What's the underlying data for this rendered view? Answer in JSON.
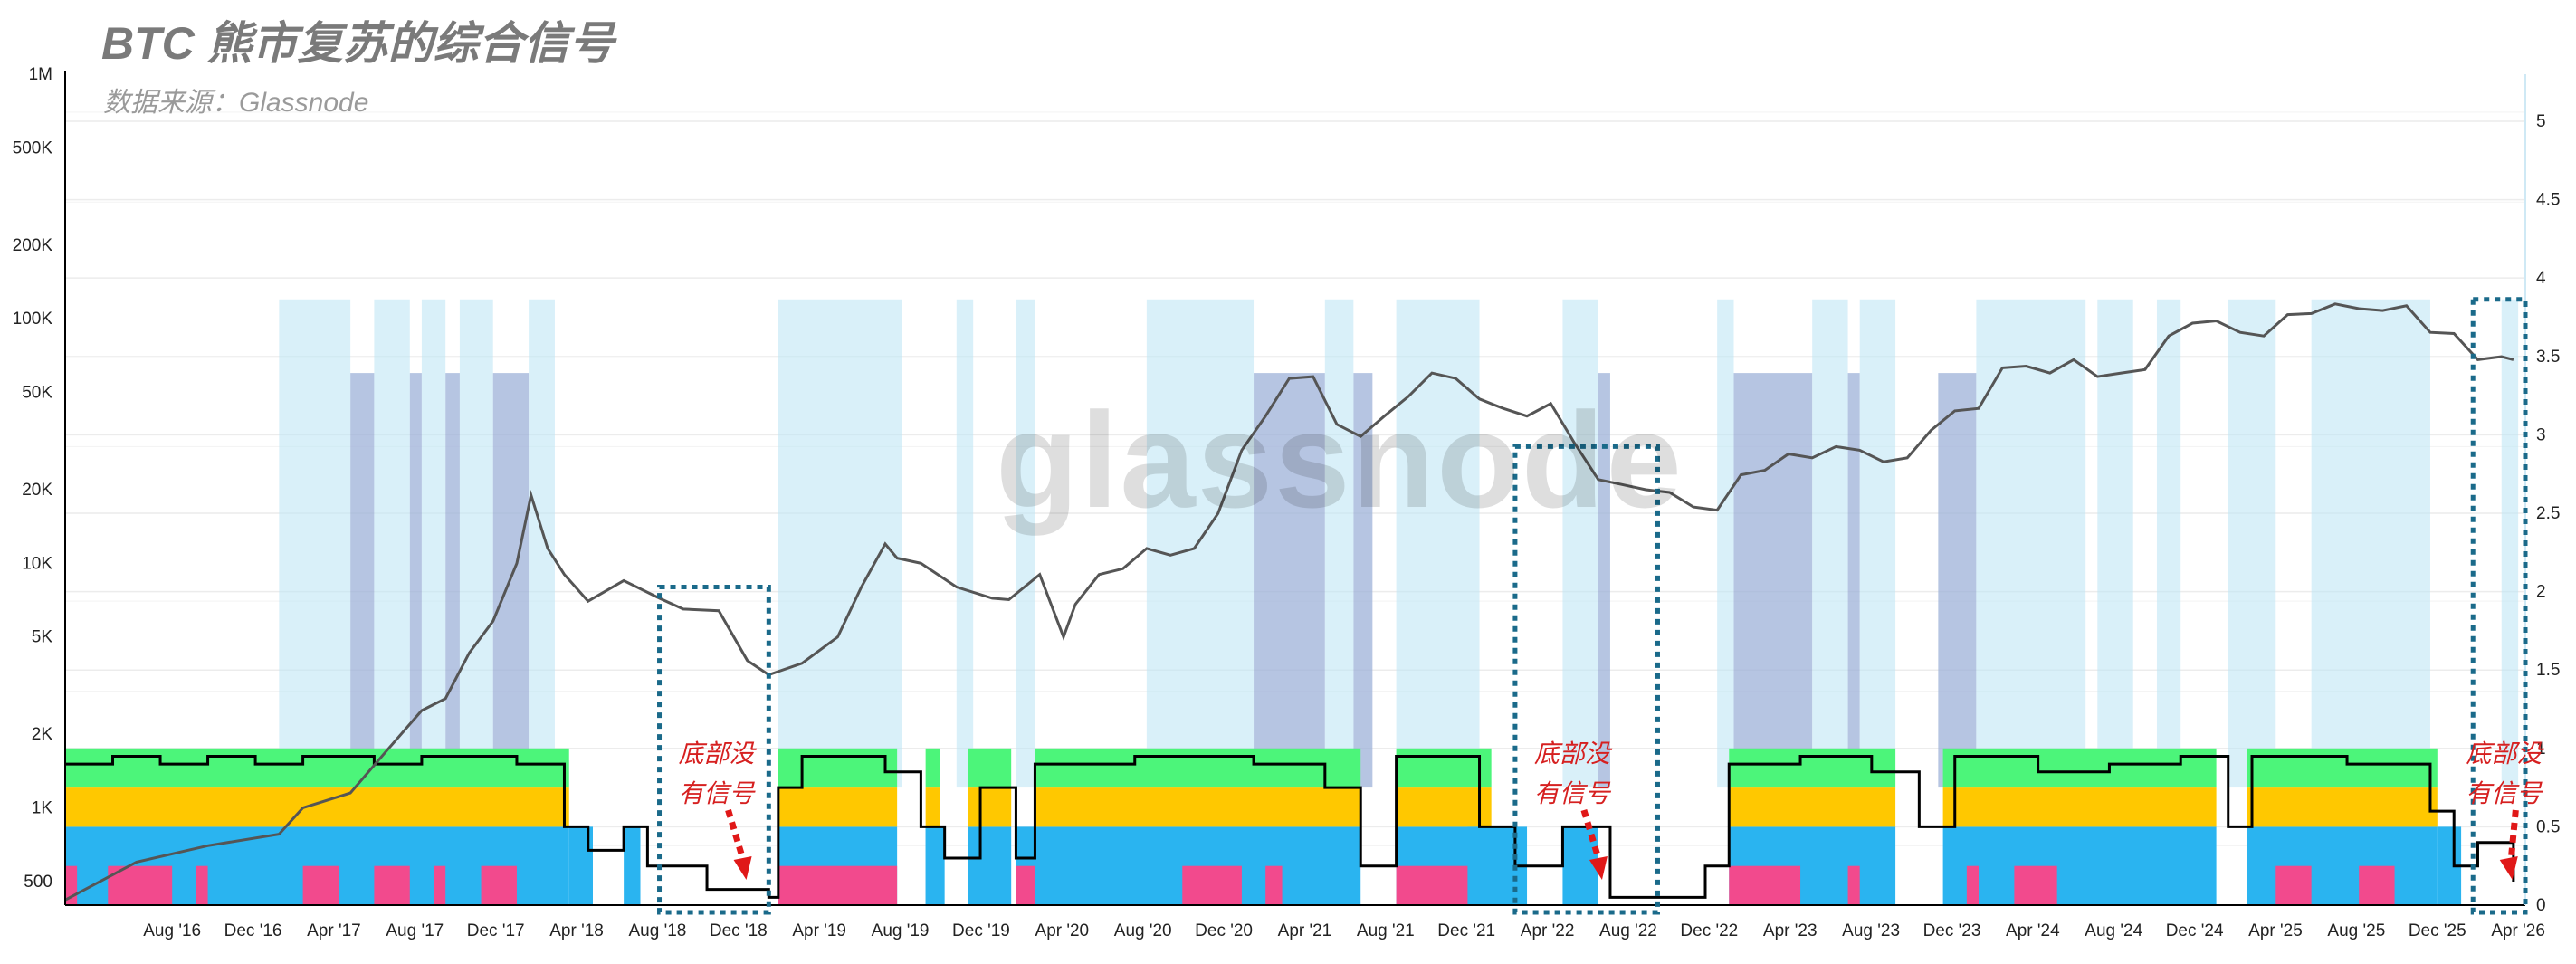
{
  "chart_data": {
    "type": "line",
    "title": "BTC 熊市复苏的综合信号",
    "subtitle": "数据来源：Glassnode",
    "watermark": "glassnode",
    "x_tick_labels": [
      "Aug '16",
      "Dec '16",
      "Apr '17",
      "Aug '17",
      "Dec '17",
      "Apr '18",
      "Aug '18",
      "Dec '18",
      "Apr '19",
      "Aug '19",
      "Dec '19",
      "Apr '20",
      "Aug '20",
      "Dec '20",
      "Apr '21",
      "Aug '21",
      "Dec '21",
      "Apr '22",
      "Aug '22",
      "Dec '22",
      "Apr '23",
      "Aug '23",
      "Dec '23",
      "Apr '24",
      "Aug '24",
      "Dec '24",
      "Apr '25",
      "Aug '25",
      "Dec '25",
      "Apr '26"
    ],
    "x_range": [
      2016.0,
      2026.35
    ],
    "y_left": {
      "scale": "log",
      "ticks": [
        500,
        1000,
        2000,
        5000,
        10000,
        20000,
        50000,
        100000,
        200000,
        500000,
        1000000
      ],
      "tick_labels": [
        "500",
        "1K",
        "2K",
        "5K",
        "10K",
        "20K",
        "50K",
        "100K",
        "200K",
        "500K",
        "1M"
      ],
      "range": [
        400,
        1000000
      ]
    },
    "y_right": {
      "scale": "linear",
      "ticks": [
        0,
        0.5,
        1,
        1.5,
        2,
        2.5,
        3,
        3.5,
        4,
        4.5,
        5
      ],
      "tick_labels": [
        "0",
        "0.5",
        "1",
        "1.5",
        "2",
        "2.5",
        "3",
        "3.5",
        "4",
        "4.5",
        "5"
      ],
      "range": [
        0,
        5.3
      ]
    },
    "grid": true,
    "series": [
      {
        "axis": "left",
        "color": "#555555",
        "x": [
          2016.0,
          2016.3,
          2016.6,
          2016.9,
          2017.0,
          2017.2,
          2017.35,
          2017.5,
          2017.6,
          2017.7,
          2017.8,
          2017.9,
          2017.96,
          2018.03,
          2018.1,
          2018.2,
          2018.35,
          2018.5,
          2018.6,
          2018.75,
          2018.87,
          2018.96,
          2019.1,
          2019.25,
          2019.35,
          2019.45,
          2019.5,
          2019.6,
          2019.75,
          2019.9,
          2019.97,
          2020.1,
          2020.2,
          2020.25,
          2020.35,
          2020.45,
          2020.55,
          2020.65,
          2020.75,
          2020.85,
          2020.95,
          2021.05,
          2021.15,
          2021.25,
          2021.35,
          2021.45,
          2021.55,
          2021.65,
          2021.75,
          2021.85,
          2021.95,
          2022.05,
          2022.15,
          2022.25,
          2022.35,
          2022.45,
          2022.55,
          2022.65,
          2022.75,
          2022.85,
          2022.95,
          2023.05,
          2023.15,
          2023.25,
          2023.35,
          2023.45,
          2023.55,
          2023.65,
          2023.75,
          2023.85,
          2023.95,
          2024.05,
          2024.15,
          2024.25,
          2024.35,
          2024.45,
          2024.55,
          2024.65,
          2024.75,
          2024.85,
          2024.95,
          2025.05,
          2025.15,
          2025.25,
          2025.35,
          2025.45,
          2025.55,
          2025.65,
          2025.75,
          2025.85,
          2025.95,
          2026.05,
          2026.15,
          2026.25,
          2026.3
        ],
        "y": [
          420,
          600,
          700,
          780,
          1000,
          1150,
          1700,
          2500,
          2800,
          4300,
          5800,
          10000,
          19000,
          11500,
          9000,
          7000,
          8500,
          7200,
          6500,
          6400,
          4000,
          3500,
          3900,
          5000,
          8000,
          12000,
          10500,
          10000,
          8000,
          7200,
          7100,
          9000,
          5000,
          6800,
          9000,
          9500,
          11500,
          10800,
          11500,
          16000,
          29000,
          40000,
          57000,
          58000,
          37000,
          33000,
          40000,
          48000,
          60000,
          57000,
          47000,
          43000,
          40000,
          45000,
          31000,
          22000,
          21000,
          20000,
          19500,
          17000,
          16500,
          23000,
          24000,
          28000,
          27000,
          30000,
          29000,
          26000,
          27000,
          35000,
          42000,
          43000,
          63000,
          64000,
          60000,
          68000,
          58000,
          60000,
          62000,
          85000,
          96000,
          98000,
          88000,
          85000,
          104000,
          105000,
          115000,
          110000,
          108000,
          113000,
          88000,
          87000,
          68000,
          70000,
          68000
        ]
      }
    ],
    "composite_signal_y_right_stack": [
      {
        "color": "#2ab4f0",
        "from": 0,
        "to": 0.5
      },
      {
        "color": "#ffc800",
        "from": 0.5,
        "to": 0.75
      },
      {
        "color": "#4cf57a",
        "from": 0.75,
        "to": 1.0
      }
    ],
    "annotations": [
      {
        "line1": "底部没",
        "line2": "有信号"
      },
      {
        "line1": "底部没",
        "line2": "有信号"
      },
      {
        "line1": "底部没",
        "line2": "有信号"
      }
    ]
  }
}
